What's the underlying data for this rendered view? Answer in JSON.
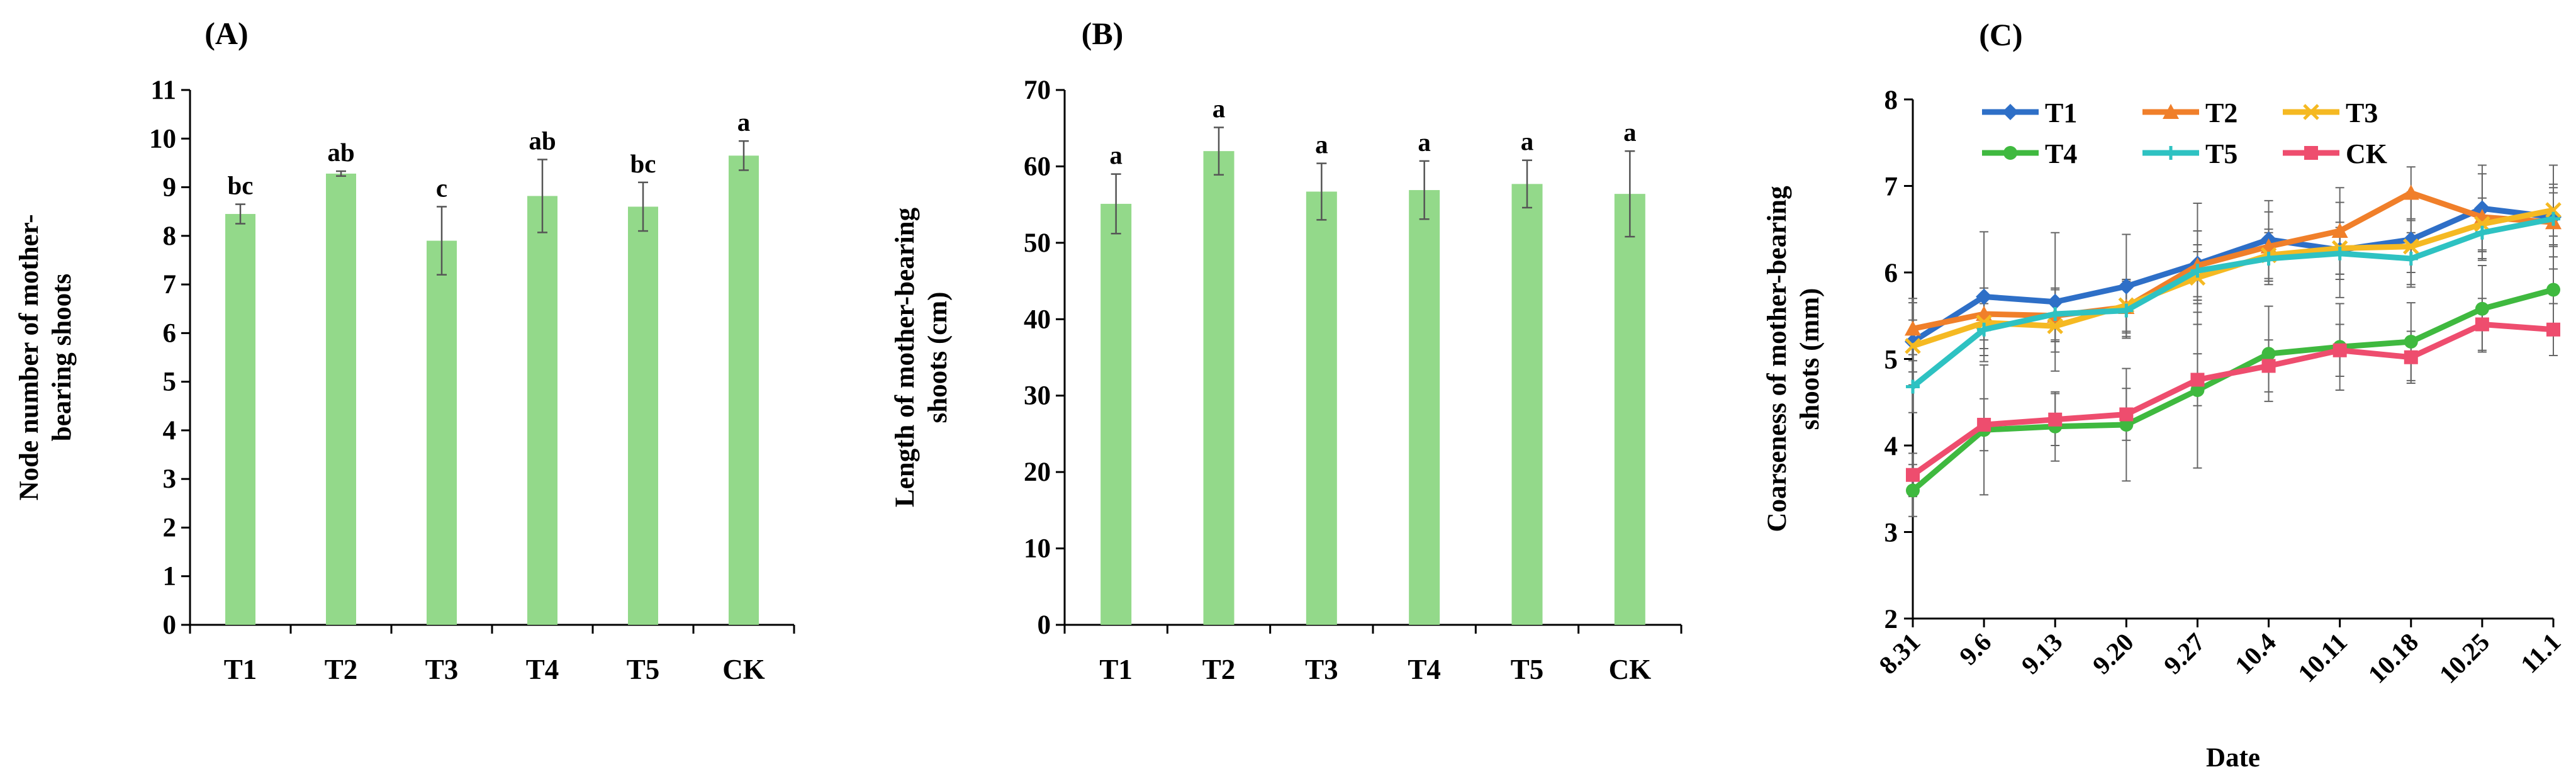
{
  "chart_data": [
    {
      "type": "bar",
      "panel_label": "(A)",
      "categories": [
        "T1",
        "T2",
        "T3",
        "T4",
        "T5",
        "CK"
      ],
      "values": [
        8.45,
        9.28,
        7.9,
        8.82,
        8.6,
        9.65
      ],
      "errors": [
        0.2,
        0.05,
        0.7,
        0.75,
        0.5,
        0.3
      ],
      "significance": [
        "bc",
        "ab",
        "c",
        "ab",
        "bc",
        "a"
      ],
      "ylabel": "Node number of mother-bearing shoots",
      "ylabel_lines": [
        "Node number of mother-",
        "bearing shoots"
      ],
      "xlabel": "",
      "ylim": [
        0,
        11
      ],
      "yticks": [
        "0",
        "1",
        "2",
        "3",
        "4",
        "5",
        "6",
        "7",
        "8",
        "9",
        "10",
        "11"
      ],
      "bar_color": "#93D98A",
      "grid": false
    },
    {
      "type": "bar",
      "panel_label": "(B)",
      "categories": [
        "T1",
        "T2",
        "T3",
        "T4",
        "T5",
        "CK"
      ],
      "values": [
        55.1,
        62.0,
        56.7,
        56.9,
        57.7,
        56.4
      ],
      "errors": [
        3.9,
        3.1,
        3.7,
        3.8,
        3.1,
        5.6
      ],
      "significance": [
        "a",
        "a",
        "a",
        "a",
        "a",
        "a"
      ],
      "ylabel": "Length of mother-bearing shoots (cm)",
      "ylabel_lines": [
        "Length of mother-bearing",
        "shoots (cm)"
      ],
      "xlabel": "",
      "ylim": [
        0,
        70
      ],
      "yticks": [
        "0",
        "10",
        "20",
        "30",
        "40",
        "50",
        "60",
        "70"
      ],
      "bar_color": "#93D98A",
      "grid": false
    },
    {
      "type": "line",
      "panel_label": "(C)",
      "x": [
        "8.31",
        "9.6",
        "9.13",
        "9.20",
        "9.27",
        "10.4",
        "10.11",
        "10.18",
        "10.25",
        "11.1"
      ],
      "xlabel": "Date",
      "ylabel": "Coarseness of mother-bearing shoots (mm)",
      "ylabel_lines": [
        "Coarseness of mother-bearing",
        "shoots (mm)"
      ],
      "ylim": [
        2,
        8
      ],
      "yticks": [
        "2",
        "3",
        "4",
        "5",
        "6",
        "7",
        "8"
      ],
      "grid": false,
      "legend_position": "top",
      "series": [
        {
          "name": "T1",
          "color": "#2E6FC7",
          "marker": "diamond",
          "values": [
            5.2,
            5.72,
            5.66,
            5.84,
            6.1,
            6.38,
            6.26,
            6.38,
            6.74,
            6.64
          ],
          "errors": [
            0.5,
            0.75,
            0.8,
            0.6,
            0.7,
            0.45,
            0.55,
            0.55,
            0.5,
            0.6
          ]
        },
        {
          "name": "T2",
          "color": "#F07F2A",
          "marker": "triangle",
          "values": [
            5.35,
            5.52,
            5.5,
            5.6,
            6.08,
            6.3,
            6.48,
            6.92,
            6.64,
            6.58
          ],
          "errors": [
            0.3,
            0.3,
            0.3,
            0.3,
            0.4,
            0.4,
            0.5,
            0.3,
            0.5,
            0.4
          ]
        },
        {
          "name": "T3",
          "color": "#F5B922",
          "marker": "x",
          "values": [
            5.15,
            5.42,
            5.38,
            5.62,
            5.94,
            6.2,
            6.28,
            6.3,
            6.56,
            6.72
          ],
          "errors": [
            0.3,
            0.3,
            0.3,
            0.3,
            0.3,
            0.3,
            0.3,
            0.3,
            0.3,
            0.3
          ]
        },
        {
          "name": "T4",
          "color": "#3FB93F",
          "marker": "circle",
          "values": [
            3.48,
            4.18,
            4.22,
            4.24,
            4.64,
            5.06,
            5.14,
            5.2,
            5.58,
            5.8
          ],
          "errors": [
            0.3,
            0.75,
            0.4,
            0.65,
            0.9,
            0.55,
            0.5,
            0.45,
            0.5,
            0.5
          ]
        },
        {
          "name": "T5",
          "color": "#2EC2C2",
          "marker": "plus",
          "values": [
            4.68,
            5.34,
            5.52,
            5.56,
            6.02,
            6.16,
            6.22,
            6.16,
            6.46,
            6.62
          ],
          "errors": [
            0.3,
            0.3,
            0.3,
            0.3,
            0.3,
            0.3,
            0.3,
            0.3,
            0.3,
            0.3
          ]
        },
        {
          "name": "CK",
          "color": "#EE4D6E",
          "marker": "square",
          "values": [
            3.66,
            4.24,
            4.3,
            4.36,
            4.76,
            4.92,
            5.1,
            5.02,
            5.4,
            5.34
          ],
          "errors": [
            0.25,
            0.3,
            0.3,
            0.3,
            0.3,
            0.3,
            0.3,
            0.3,
            0.3,
            0.3
          ]
        }
      ]
    }
  ]
}
